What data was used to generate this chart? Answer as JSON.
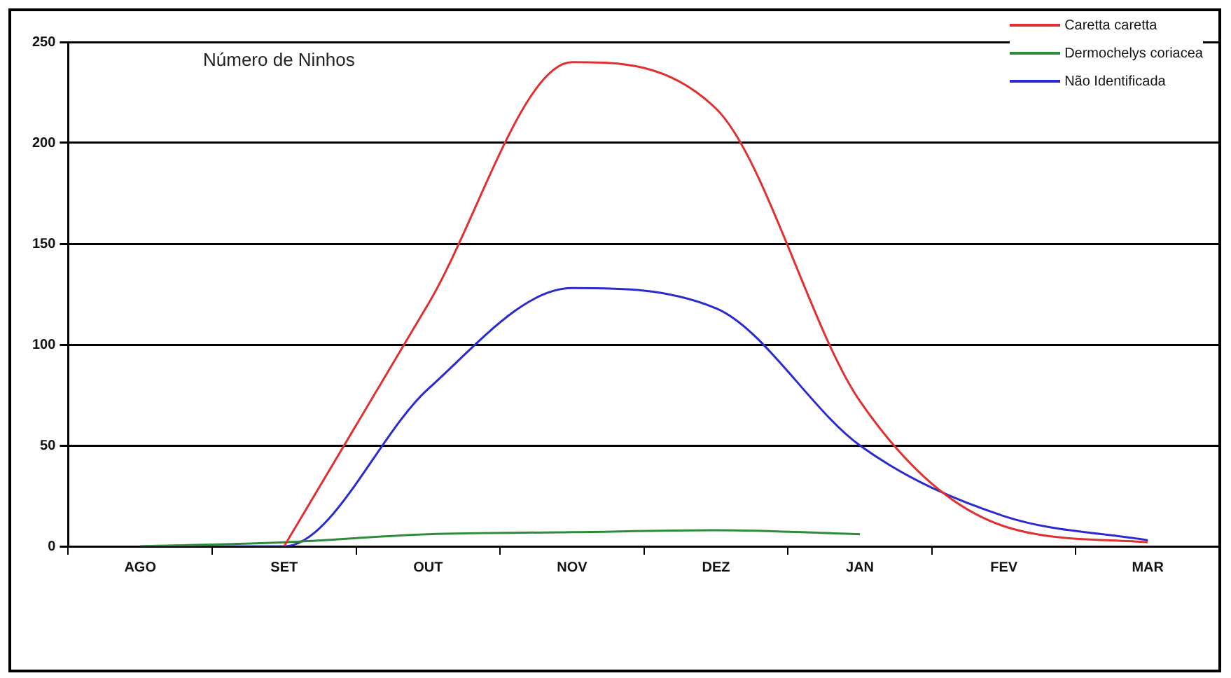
{
  "chart_data": {
    "type": "line",
    "title": "Número de Ninhos",
    "categories": [
      "AGO",
      "SET",
      "OUT",
      "NOV",
      "DEZ",
      "JAN",
      "FEV",
      "MAR"
    ],
    "series": [
      {
        "name": "Caretta caretta",
        "color": "#e03030",
        "values": [
          null,
          0,
          120,
          240,
          217,
          72,
          10,
          2
        ]
      },
      {
        "name": "Dermochelys coriacea",
        "color": "#2e8b3a",
        "values": [
          0,
          2,
          6,
          7,
          8,
          6,
          null,
          null
        ]
      },
      {
        "name": "Não Identificada",
        "color": "#2a2ad0",
        "values": [
          0,
          0,
          78,
          128,
          118,
          50,
          15,
          3
        ]
      }
    ],
    "ylim": [
      0,
      250
    ],
    "yticks": [
      0,
      50,
      100,
      150,
      200,
      250
    ],
    "grid": "y",
    "legend": "top right",
    "marker": "none",
    "line_style": "solid"
  }
}
